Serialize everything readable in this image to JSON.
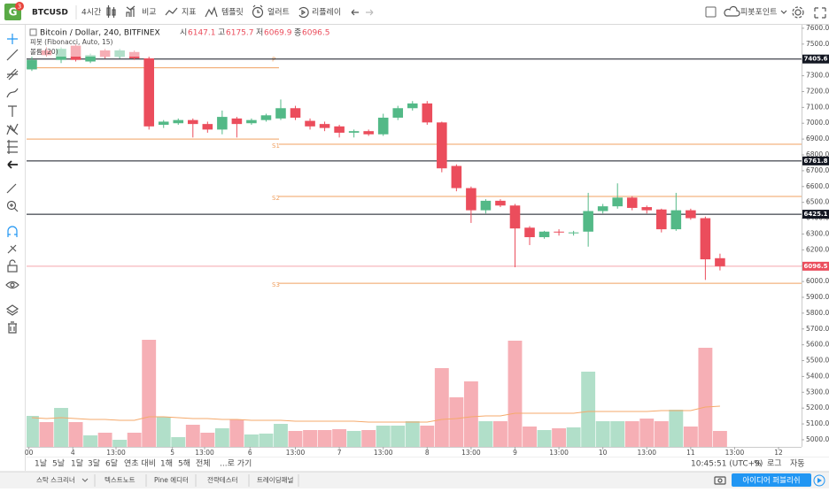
{
  "toolbar": {
    "badge": "3",
    "symbol": "BTCUSD",
    "interval": "4시간",
    "compare": "비교",
    "indicators": "지표",
    "templates": "템플릿",
    "alert": "얼러트",
    "replay": "리플레이",
    "pivot": "피봇포인트"
  },
  "chart_data": {
    "type": "candlestick",
    "title": "Bitcoin / Dollar, 240, BITFINEX",
    "ohlc_labels": [
      {
        "label": "시",
        "value": 6147.1
      },
      {
        "label": "고",
        "value": 6175.7
      },
      {
        "label": "저",
        "value": 6069.9
      },
      {
        "label": "종",
        "value": 6096.5
      }
    ],
    "indicators": [
      "피봇 (Fibonacci, Auto, 15)",
      "볼륨 (20)"
    ],
    "x": [
      0,
      1,
      2,
      3,
      4,
      5,
      6,
      7,
      8,
      9,
      10,
      11,
      12,
      13,
      14,
      15,
      16,
      17,
      18,
      19,
      20,
      21,
      22,
      23,
      24,
      25,
      26,
      27,
      28,
      29,
      30,
      31,
      32,
      33,
      34,
      35,
      36,
      37,
      38,
      39,
      40,
      41,
      42,
      43,
      44,
      45,
      46,
      47
    ],
    "open": [
      7340,
      7460,
      7400,
      7490,
      7390,
      7460,
      7420,
      7450,
      7410,
      6990,
      7000,
      7020,
      6995,
      6960,
      7030,
      7000,
      7020,
      7030,
      7095,
      7015,
      6995,
      6980,
      6940,
      6950,
      6930,
      7035,
      7095,
      7125,
      7005,
      6730,
      6590,
      6450,
      6510,
      6480,
      6340,
      6280,
      6315,
      6305,
      6315,
      6445,
      6475,
      6530,
      6470,
      6455,
      6330,
      6450,
      6400,
      6147.1
    ],
    "high": [
      7420,
      7480,
      7480,
      7500,
      7440,
      7470,
      7470,
      7460,
      7420,
      7020,
      7030,
      7030,
      7010,
      7080,
      7040,
      7030,
      7060,
      7150,
      7110,
      7030,
      7010,
      6990,
      6960,
      6960,
      7060,
      7110,
      7140,
      7140,
      7010,
      6740,
      6600,
      6520,
      6520,
      6490,
      6350,
      6320,
      6330,
      6320,
      6560,
      6490,
      6620,
      6540,
      6480,
      6460,
      6560,
      6460,
      6410,
      6175.7
    ],
    "low": [
      7330,
      7420,
      7380,
      7390,
      7380,
      7410,
      7410,
      7400,
      6960,
      6970,
      6990,
      6910,
      6940,
      6930,
      6910,
      6990,
      7010,
      7020,
      7020,
      6960,
      6950,
      6910,
      6910,
      6920,
      6920,
      7020,
      7080,
      6990,
      6690,
      6570,
      6370,
      6430,
      6470,
      6090,
      6230,
      6270,
      6290,
      6290,
      6220,
      6430,
      6460,
      6450,
      6430,
      6310,
      6320,
      6390,
      6010,
      6069.9
    ],
    "close": [
      7400,
      7430,
      7470,
      7400,
      7430,
      7420,
      7460,
      7410,
      6980,
      7010,
      7020,
      6995,
      6960,
      7040,
      6995,
      7020,
      7050,
      7095,
      7035,
      6980,
      6970,
      6940,
      6950,
      6930,
      7035,
      7095,
      7125,
      7005,
      6715,
      6590,
      6450,
      6510,
      6480,
      6335,
      6280,
      6315,
      6310,
      6310,
      6445,
      6475,
      6530,
      6465,
      6450,
      6330,
      6450,
      6400,
      6140,
      6096.5
    ],
    "volume": [
      35,
      28,
      44,
      28,
      13,
      16,
      8,
      16,
      121,
      34,
      11,
      25,
      16,
      21,
      31,
      14,
      15,
      26,
      18,
      19,
      19,
      20,
      18,
      19,
      24,
      24,
      29,
      24,
      89,
      56,
      74,
      29,
      29,
      120,
      23,
      19,
      21,
      22,
      85,
      29,
      29,
      29,
      32,
      29,
      42,
      23,
      112,
      18
    ],
    "volume_ma": [
      33,
      32,
      33,
      32,
      31,
      31,
      30,
      30,
      34,
      34,
      33,
      32,
      32,
      31,
      31,
      30,
      30,
      30,
      29,
      29,
      29,
      29,
      29,
      28,
      28,
      28,
      28,
      28,
      31,
      32,
      34,
      35,
      35,
      38,
      38,
      38,
      38,
      38,
      40,
      40,
      40,
      40,
      40,
      41,
      41,
      41,
      45,
      46
    ],
    "up_color": "#53b987",
    "down_color": "#eb4d5c",
    "volume_ma_color": "#f5a96b",
    "xlim": [
      -0.36,
      52.57
    ],
    "xticks": [
      {
        "value": -0.2,
        "label": "00"
      },
      {
        "value": 2.8,
        "label": "4"
      },
      {
        "value": 5.75,
        "label": "13:00"
      },
      {
        "value": 9.6,
        "label": "5"
      },
      {
        "value": 11.8,
        "label": "13:00"
      },
      {
        "value": 14.9,
        "label": "6"
      },
      {
        "value": 18,
        "label": "13:00"
      },
      {
        "value": 21,
        "label": "7"
      },
      {
        "value": 24,
        "label": "13:00"
      },
      {
        "value": 27,
        "label": "8"
      },
      {
        "value": 30,
        "label": "13:00"
      },
      {
        "value": 33,
        "label": "9"
      },
      {
        "value": 36,
        "label": "13:00"
      },
      {
        "value": 39,
        "label": "10"
      },
      {
        "value": 42,
        "label": "13:00"
      },
      {
        "value": 45,
        "label": "11"
      },
      {
        "value": 48,
        "label": "13:00"
      },
      {
        "value": 51,
        "label": "12"
      }
    ],
    "ylim": [
      4955,
      7622
    ],
    "yticks": [
      {
        "value": 5000,
        "label": "5000.0"
      },
      {
        "value": 5100,
        "label": "5100.0"
      },
      {
        "value": 5200,
        "label": "5200.0"
      },
      {
        "value": 5300,
        "label": "5300.0"
      },
      {
        "value": 5400,
        "label": "5400.0"
      },
      {
        "value": 5500,
        "label": "5500.0"
      },
      {
        "value": 5600,
        "label": "5600.0"
      },
      {
        "value": 5700,
        "label": "5700.0"
      },
      {
        "value": 5800,
        "label": "5800.0"
      },
      {
        "value": 5900,
        "label": "5900.0"
      },
      {
        "value": 6000,
        "label": "6000.0"
      },
      {
        "value": 6100,
        "label": "6100.0"
      },
      {
        "value": 6200,
        "label": "6200.0"
      },
      {
        "value": 6300,
        "label": "6300.0"
      },
      {
        "value": 6400,
        "label": "6400.0"
      },
      {
        "value": 6500,
        "label": "6500.0"
      },
      {
        "value": 6600,
        "label": "6600.0"
      },
      {
        "value": 6700,
        "label": "6700.0"
      },
      {
        "value": 6800,
        "label": "6800.0"
      },
      {
        "value": 6900,
        "label": "6900.0"
      },
      {
        "value": 7000,
        "label": "7000.0"
      },
      {
        "value": 7100,
        "label": "7100.0"
      },
      {
        "value": 7200,
        "label": "7200.0"
      },
      {
        "value": 7300,
        "label": "7300.0"
      },
      {
        "value": 7400,
        "label": "7400.0"
      },
      {
        "value": 7500,
        "label": "7500.0"
      },
      {
        "value": 7600,
        "label": "7600.0"
      }
    ],
    "price_lines": [
      {
        "value": 7405.6,
        "color": "#131722"
      },
      {
        "value": 6761.8,
        "color": "#131722"
      },
      {
        "value": 6425.1,
        "color": "#131722"
      },
      {
        "value": 6096.5,
        "color": "#eb4d5c"
      }
    ],
    "pivot_color": "#f0a060",
    "pivot_periods": [
      {
        "levels": [
          {
            "label": "P",
            "value": 7350
          },
          {
            "value": 6900
          }
        ]
      },
      {
        "levels": [
          {
            "label": "S1",
            "value": 6867
          },
          {
            "label": "S2",
            "value": 6537
          },
          {
            "label": "S3",
            "value": 5989
          }
        ]
      }
    ]
  },
  "range_bar": {
    "ranges": [
      "1날",
      "5날",
      "1달",
      "3달",
      "6달",
      "연초 대비",
      "1해",
      "5해",
      "전체"
    ],
    "goto": "...로 가기",
    "clock": "10:45:51 (UTC+9)",
    "percent": "%",
    "log": "로그",
    "auto": "자동"
  },
  "bottom_panel": {
    "tabs": [
      "스탁 스크리너",
      "텍스트노트",
      "Pine 에디터",
      "전략테스터",
      "트레이딩패널"
    ],
    "publish": "아이디어 퍼블리쉬"
  }
}
